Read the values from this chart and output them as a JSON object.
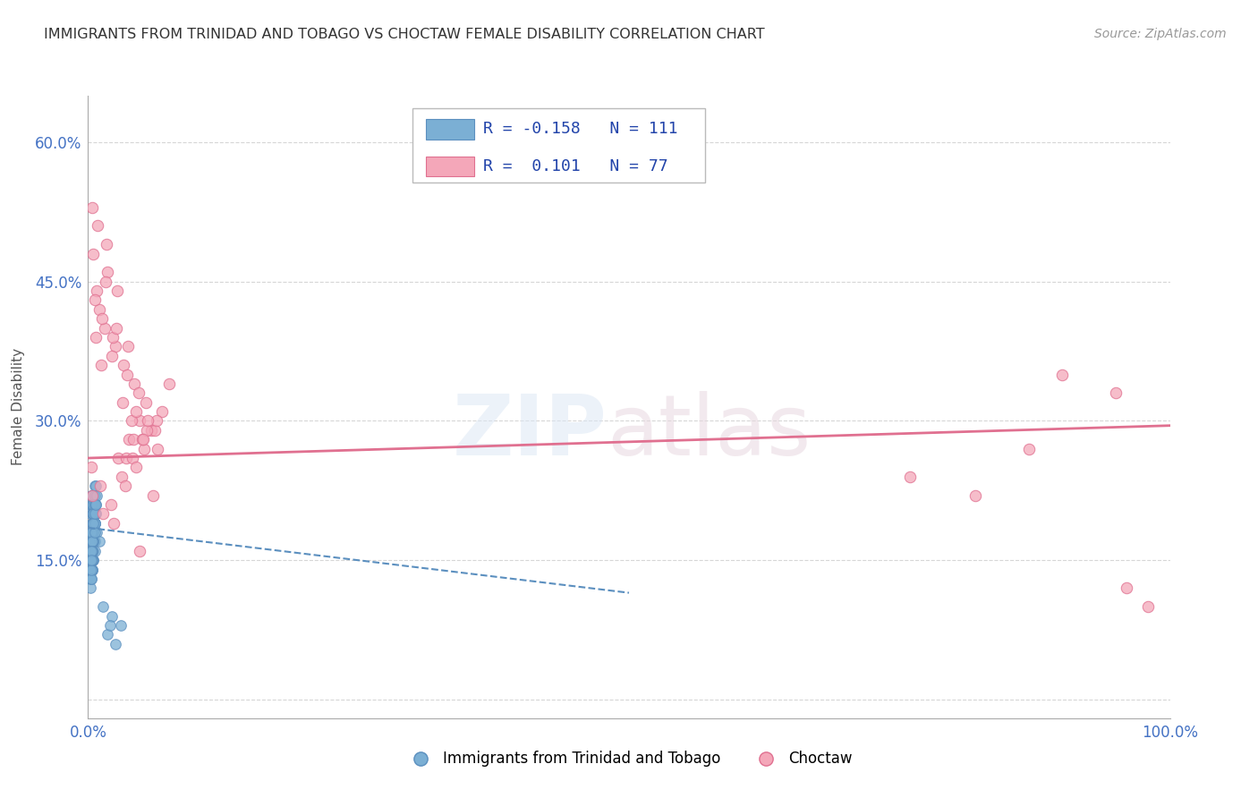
{
  "title": "IMMIGRANTS FROM TRINIDAD AND TOBAGO VS CHOCTAW FEMALE DISABILITY CORRELATION CHART",
  "source": "Source: ZipAtlas.com",
  "ylabel": "Female Disability",
  "xlim": [
    0.0,
    1.0
  ],
  "ylim": [
    -0.02,
    0.65
  ],
  "yticks": [
    0.0,
    0.15,
    0.3,
    0.45,
    0.6
  ],
  "ytick_labels": [
    "",
    "15.0%",
    "30.0%",
    "45.0%",
    "60.0%"
  ],
  "legend2_labels": [
    "Immigrants from Trinidad and Tobago",
    "Choctaw"
  ],
  "blue_scatter_x": [
    0.004,
    0.003,
    0.002,
    0.005,
    0.006,
    0.007,
    0.004,
    0.003,
    0.005,
    0.006,
    0.002,
    0.003,
    0.004,
    0.005,
    0.006,
    0.007,
    0.003,
    0.002,
    0.004,
    0.005,
    0.004,
    0.003,
    0.002,
    0.004,
    0.005,
    0.006,
    0.008,
    0.01,
    0.003,
    0.005,
    0.006,
    0.005,
    0.004,
    0.003,
    0.002,
    0.004,
    0.006,
    0.007,
    0.003,
    0.002,
    0.002,
    0.004,
    0.005,
    0.006,
    0.003,
    0.004,
    0.004,
    0.002,
    0.003,
    0.004,
    0.005,
    0.004,
    0.003,
    0.003,
    0.005,
    0.005,
    0.004,
    0.003,
    0.003,
    0.006,
    0.005,
    0.004,
    0.004,
    0.003,
    0.005,
    0.007,
    0.008,
    0.005,
    0.006,
    0.006,
    0.003,
    0.004,
    0.002,
    0.003,
    0.005,
    0.003,
    0.004,
    0.005,
    0.004,
    0.005,
    0.004,
    0.003,
    0.003,
    0.002,
    0.005,
    0.006,
    0.006,
    0.004,
    0.003,
    0.004,
    0.002,
    0.003,
    0.004,
    0.006,
    0.005,
    0.003,
    0.006,
    0.007,
    0.003,
    0.003,
    0.025,
    0.03,
    0.018,
    0.022,
    0.014,
    0.02
  ],
  "blue_scatter_y": [
    0.19,
    0.22,
    0.2,
    0.16,
    0.17,
    0.2,
    0.21,
    0.18,
    0.15,
    0.23,
    0.13,
    0.14,
    0.16,
    0.17,
    0.19,
    0.2,
    0.22,
    0.15,
    0.14,
    0.18,
    0.2,
    0.21,
    0.17,
    0.19,
    0.15,
    0.16,
    0.18,
    0.17,
    0.14,
    0.2,
    0.21,
    0.19,
    0.17,
    0.16,
    0.15,
    0.18,
    0.2,
    0.21,
    0.14,
    0.13,
    0.12,
    0.16,
    0.17,
    0.19,
    0.15,
    0.14,
    0.18,
    0.17,
    0.16,
    0.15,
    0.19,
    0.21,
    0.17,
    0.16,
    0.2,
    0.19,
    0.18,
    0.17,
    0.16,
    0.22,
    0.2,
    0.19,
    0.18,
    0.17,
    0.21,
    0.23,
    0.22,
    0.2,
    0.21,
    0.19,
    0.13,
    0.15,
    0.14,
    0.16,
    0.17,
    0.15,
    0.16,
    0.18,
    0.14,
    0.19,
    0.17,
    0.18,
    0.16,
    0.15,
    0.2,
    0.19,
    0.21,
    0.17,
    0.15,
    0.16,
    0.14,
    0.13,
    0.15,
    0.18,
    0.19,
    0.16,
    0.2,
    0.21,
    0.14,
    0.15,
    0.06,
    0.08,
    0.07,
    0.09,
    0.1,
    0.08
  ],
  "pink_scatter_x": [
    0.004,
    0.008,
    0.018,
    0.028,
    0.038,
    0.048,
    0.058,
    0.068,
    0.075,
    0.01,
    0.015,
    0.025,
    0.035,
    0.042,
    0.052,
    0.062,
    0.007,
    0.012,
    0.022,
    0.032,
    0.04,
    0.05,
    0.006,
    0.013,
    0.023,
    0.033,
    0.043,
    0.053,
    0.063,
    0.005,
    0.016,
    0.026,
    0.036,
    0.044,
    0.054,
    0.064,
    0.009,
    0.017,
    0.027,
    0.037,
    0.047,
    0.055,
    0.003,
    0.011,
    0.021,
    0.031,
    0.041,
    0.051,
    0.004,
    0.014,
    0.024,
    0.034,
    0.044,
    0.06,
    0.048,
    0.9,
    0.95,
    0.87,
    0.82,
    0.76,
    0.96,
    0.98
  ],
  "pink_scatter_y": [
    0.53,
    0.44,
    0.46,
    0.26,
    0.28,
    0.3,
    0.29,
    0.31,
    0.34,
    0.42,
    0.4,
    0.38,
    0.26,
    0.28,
    0.27,
    0.29,
    0.39,
    0.36,
    0.37,
    0.32,
    0.3,
    0.28,
    0.43,
    0.41,
    0.39,
    0.36,
    0.34,
    0.32,
    0.3,
    0.48,
    0.45,
    0.4,
    0.35,
    0.31,
    0.29,
    0.27,
    0.51,
    0.49,
    0.44,
    0.38,
    0.33,
    0.3,
    0.25,
    0.23,
    0.21,
    0.24,
    0.26,
    0.28,
    0.22,
    0.2,
    0.19,
    0.23,
    0.25,
    0.22,
    0.16,
    0.35,
    0.33,
    0.27,
    0.22,
    0.24,
    0.12,
    0.1
  ],
  "blue_line_x": [
    0.0,
    0.5
  ],
  "blue_line_y": [
    0.185,
    0.115
  ],
  "pink_line_x": [
    0.0,
    1.0
  ],
  "pink_line_y": [
    0.26,
    0.295
  ],
  "background_color": "#ffffff",
  "grid_color": "#cccccc",
  "title_color": "#333333",
  "tick_color": "#4472c4",
  "scatter_blue_color": "#7bafd4",
  "scatter_blue_edge": "#5b8fbf",
  "scatter_pink_color": "#f4a7b9",
  "scatter_pink_edge": "#e07090",
  "trend_blue_color": "#5b8fbf",
  "trend_pink_color": "#e07090",
  "legend_r1": "R = -0.158   N = 111",
  "legend_r2": "R =  0.101   N = 77"
}
